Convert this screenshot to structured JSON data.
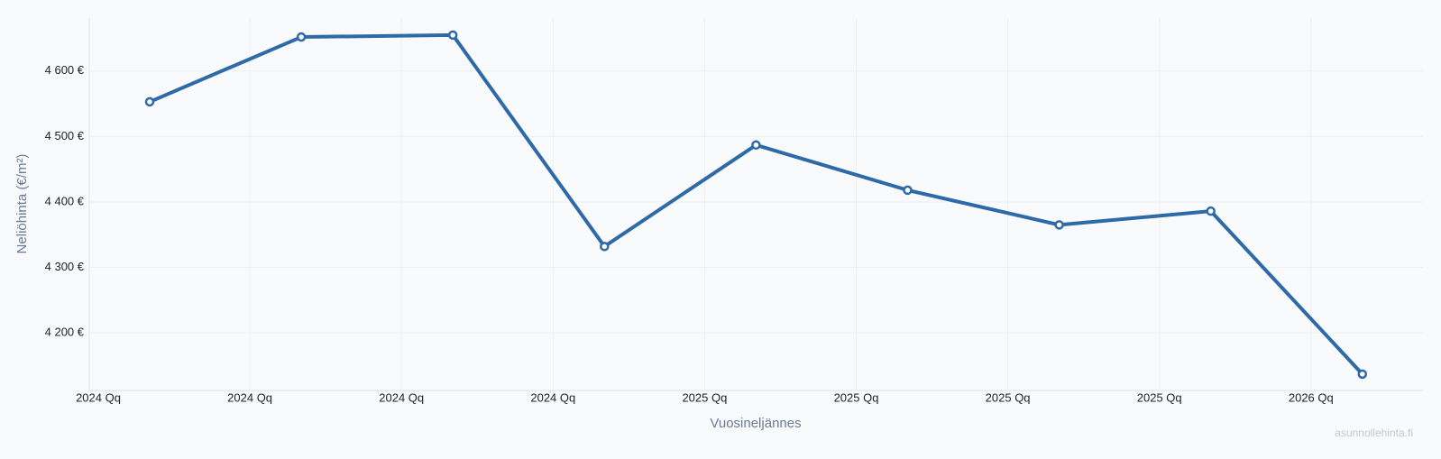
{
  "chart_data": {
    "type": "line",
    "x_label": "Vuosineljännes",
    "y_label": "Neliöhinta (€/m²)",
    "watermark": "asunnollehinta.fi",
    "categories": [
      "2024 Qq",
      "2024 Qq",
      "2024 Qq",
      "2024 Qq",
      "2025 Qq",
      "2025 Qq",
      "2025 Qq",
      "2025 Qq",
      "2026 Qq"
    ],
    "series": [
      {
        "color": "#2f6aa8",
        "values": [
          4553,
          4652,
          4655,
          4332,
          4487,
          4418,
          4365,
          4386,
          4137
        ]
      }
    ],
    "ylim": [
      4112,
      4681
    ],
    "yticks": [
      {
        "value": 4200,
        "label": "4 200 €"
      },
      {
        "value": 4300,
        "label": "4 300 €"
      },
      {
        "value": 4400,
        "label": "4 400 €"
      },
      {
        "value": 4500,
        "label": "4 500 €"
      },
      {
        "value": 4600,
        "label": "4 600 €"
      }
    ],
    "grid": true
  }
}
